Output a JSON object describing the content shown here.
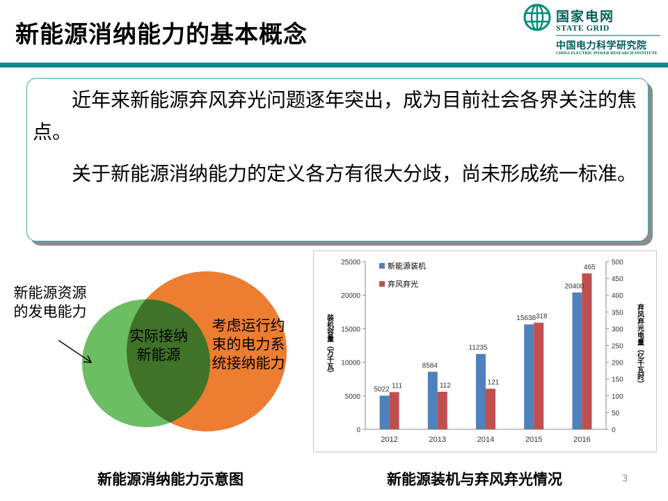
{
  "slide": {
    "title": "新能源消纳能力的基本概念",
    "page_number": "3",
    "colors": {
      "accent_teal": "#0b8a8c",
      "venn_outer_orange": "#ed7d31",
      "venn_left_green": "#6cbe63",
      "venn_overlap_green": "#3f7327"
    }
  },
  "logo": {
    "icon": "state-grid-globe-icon",
    "cn_name": "国家电网",
    "en_name": "STATE GRID",
    "institute_cn": "中国电力科学研究院",
    "institute_en": "CHINA ELECTRIC POWER RESEARCH INSTITUTE"
  },
  "callout": {
    "paragraph1": "近年来新能源弃风弃光问题逐年突出，成为目前社会各界关注的焦点。",
    "paragraph2": "关于新能源消纳能力的定义各方有很大分歧，尚未形成统一标准。"
  },
  "venn": {
    "resource_label": "新能源资源的发电能力",
    "actual_label": "实际接纳新能源",
    "constraint_label": "考虑运行约束的电力系统接纳能力",
    "caption": "新能源消纳能力示意图"
  },
  "chart_caption": "新能源装机与弃风弃光情况",
  "chart_data": {
    "type": "bar",
    "categories": [
      "2012",
      "2013",
      "2014",
      "2015",
      "2016"
    ],
    "series": [
      {
        "name": "新能源装机",
        "axis": "left",
        "color": "#4f81bd",
        "values": [
          5022,
          8584,
          11235,
          15638,
          20400
        ]
      },
      {
        "name": "弃风弃光",
        "axis": "right",
        "color": "#c0504d",
        "values": [
          111,
          112,
          121,
          318,
          465
        ]
      }
    ],
    "ylabel_left": "装机容量（万千瓦）",
    "ylabel_right": "弃风弃光电量（亿千瓦时）",
    "ylim_left": [
      0,
      25000
    ],
    "ylim_right": [
      0,
      500
    ],
    "yticks_left": [
      "0",
      "5000",
      "10000",
      "15000",
      "20000",
      "25000"
    ],
    "yticks_right": [
      "0",
      "50",
      "100",
      "150",
      "200",
      "250",
      "300",
      "350",
      "400",
      "450",
      "500"
    ],
    "legend_position": "top-left",
    "grid": false
  }
}
